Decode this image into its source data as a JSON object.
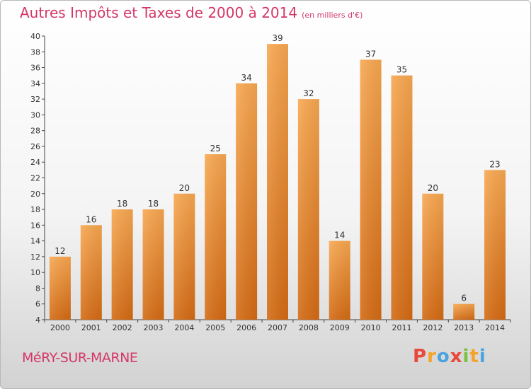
{
  "header": {
    "title": "Autres Impôts et Taxes de 2000 à 2014",
    "unit": "(en milliers d'€)"
  },
  "footer": {
    "commune": "MéRY-SUR-MARNE",
    "logo_letters": [
      "P",
      "r",
      "o",
      "x",
      "i",
      "t",
      "i"
    ],
    "logo_colors": [
      "#e8493a",
      "#f4a32a",
      "#4aa3df",
      "#e8493a",
      "#7cc142",
      "#f4a32a",
      "#4aa3df"
    ]
  },
  "colors": {
    "bar_top": "#f8a851",
    "bar_bottom": "#d46b14",
    "accent": "#d43768"
  },
  "chart_data": {
    "type": "bar",
    "title": "Autres Impôts et Taxes de 2000 à 2014",
    "subtitle": "(en milliers d'€)",
    "xlabel": "",
    "ylabel": "",
    "categories": [
      "2000",
      "2001",
      "2002",
      "2003",
      "2004",
      "2005",
      "2006",
      "2007",
      "2008",
      "2009",
      "2010",
      "2011",
      "2012",
      "2013",
      "2014"
    ],
    "values": [
      12,
      16,
      18,
      18,
      20,
      25,
      34,
      39,
      32,
      14,
      37,
      35,
      20,
      6,
      23
    ],
    "ylim": [
      4,
      40
    ],
    "yticks": [
      4,
      6,
      8,
      10,
      12,
      14,
      16,
      18,
      20,
      22,
      24,
      26,
      28,
      30,
      32,
      34,
      36,
      38,
      40
    ],
    "grid": false,
    "legend": "none"
  }
}
